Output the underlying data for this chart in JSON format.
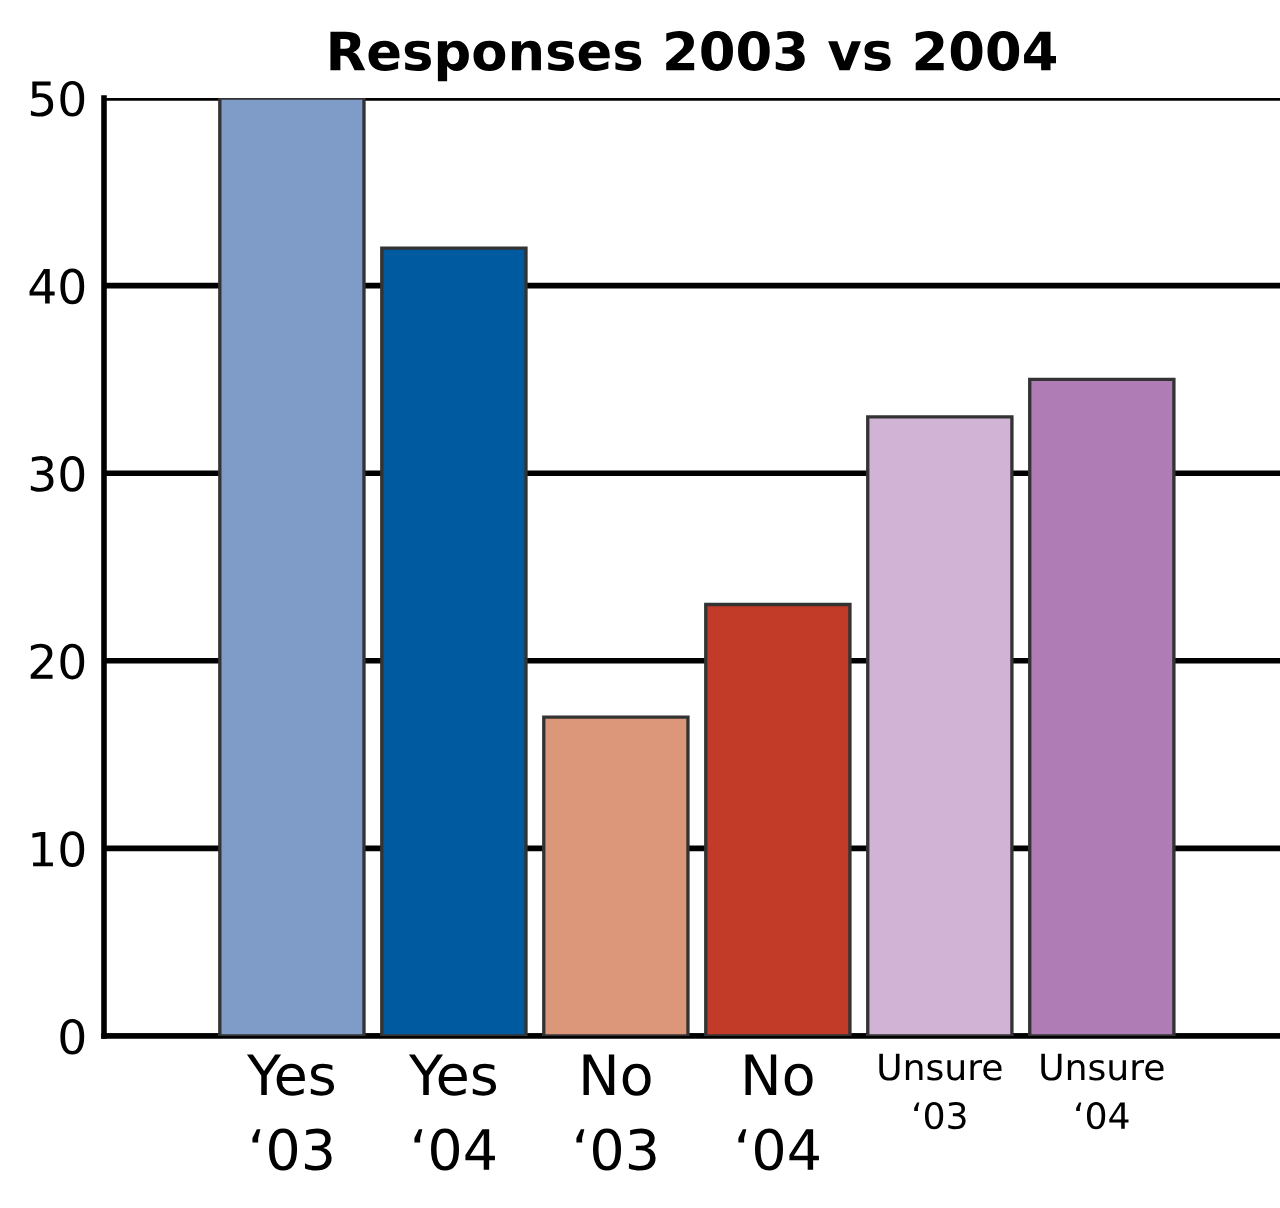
{
  "chart_data": {
    "type": "bar",
    "title": "Responses 2003 vs 2004",
    "categories": [
      "Yes\n‘03",
      "Yes\n‘04",
      "No\n‘03",
      "No\n‘04",
      "Unsure\n‘03",
      "Unsure\n‘04"
    ],
    "values": [
      50,
      42,
      17,
      23,
      33,
      35
    ],
    "colors": [
      "#7f9bc8",
      "#005aa0",
      "#dc967a",
      "#c23b28",
      "#d1b3d6",
      "#b07cb5"
    ],
    "ylim": [
      0,
      50
    ],
    "yticks": [
      0,
      10,
      20,
      30,
      40,
      50
    ],
    "grid": "y"
  }
}
